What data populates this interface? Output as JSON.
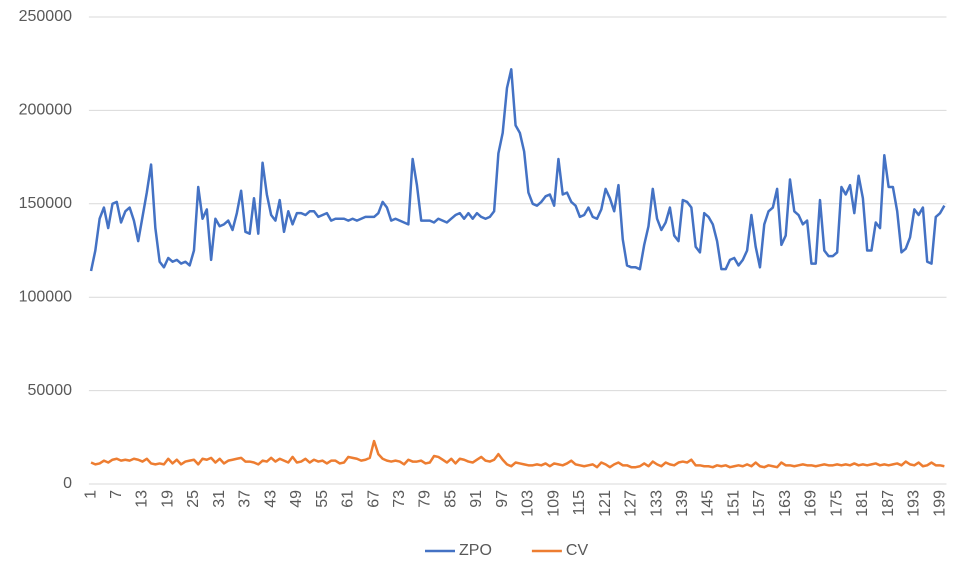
{
  "chart_data": {
    "type": "line",
    "categories": [
      1,
      null,
      null,
      null,
      null,
      null,
      7,
      null,
      null,
      null,
      null,
      null,
      13,
      null,
      null,
      null,
      null,
      null,
      19,
      null,
      null,
      null,
      null,
      null,
      25,
      null,
      null,
      null,
      null,
      null,
      31,
      null,
      null,
      null,
      null,
      null,
      37,
      null,
      null,
      null,
      null,
      null,
      43,
      null,
      null,
      null,
      null,
      null,
      49,
      null,
      null,
      null,
      null,
      null,
      55,
      null,
      null,
      null,
      null,
      null,
      61,
      null,
      null,
      null,
      null,
      null,
      67,
      null,
      null,
      null,
      null,
      null,
      73,
      null,
      null,
      null,
      null,
      null,
      79,
      null,
      null,
      null,
      null,
      null,
      85,
      null,
      null,
      null,
      null,
      null,
      91,
      null,
      null,
      null,
      null,
      null,
      97,
      null,
      null,
      null,
      null,
      null,
      103,
      null,
      null,
      null,
      null,
      null,
      109,
      null,
      null,
      null,
      null,
      null,
      115,
      null,
      null,
      null,
      null,
      null,
      121,
      null,
      null,
      null,
      null,
      null,
      127,
      null,
      null,
      null,
      null,
      null,
      133,
      null,
      null,
      null,
      null,
      null,
      139,
      null,
      null,
      null,
      null,
      null,
      145,
      null,
      null,
      null,
      null,
      null,
      151,
      null,
      null,
      null,
      null,
      null,
      157,
      null,
      null,
      null,
      null,
      null,
      163,
      null,
      null,
      null,
      null,
      null,
      169,
      null,
      null,
      null,
      null,
      null,
      175,
      null,
      null,
      null,
      null,
      null,
      181,
      null,
      null,
      null,
      null,
      null,
      187,
      null,
      null,
      null,
      null,
      null,
      193,
      null,
      null,
      null,
      null,
      null,
      199,
      null
    ],
    "series": [
      {
        "name": "ZPO",
        "color": "#4472c4",
        "values": [
          114000,
          125000,
          142000,
          148000,
          137000,
          150000,
          151000,
          140000,
          146000,
          148000,
          141000,
          130000,
          143000,
          156000,
          171000,
          137000,
          119000,
          116000,
          121000,
          119000,
          120000,
          118000,
          119000,
          117000,
          125000,
          159000,
          142000,
          147000,
          120000,
          142000,
          138000,
          139000,
          141000,
          136000,
          145000,
          157000,
          135000,
          134000,
          153000,
          134000,
          172000,
          155000,
          144000,
          141000,
          152000,
          135000,
          146000,
          139000,
          145000,
          145000,
          144000,
          146000,
          146000,
          143000,
          144000,
          145000,
          141000,
          142000,
          142000,
          142000,
          141000,
          142000,
          141000,
          142000,
          143000,
          143000,
          143000,
          145000,
          151000,
          148000,
          141000,
          142000,
          141000,
          140000,
          139000,
          174000,
          160000,
          141000,
          141000,
          141000,
          140000,
          142000,
          141000,
          140000,
          142000,
          144000,
          145000,
          142000,
          145000,
          142000,
          145000,
          143000,
          142000,
          143000,
          146000,
          177000,
          188000,
          212000,
          222000,
          192000,
          188000,
          178000,
          156000,
          150000,
          149000,
          151000,
          154000,
          155000,
          149000,
          174000,
          155000,
          156000,
          151000,
          149000,
          143000,
          144000,
          148000,
          143000,
          142000,
          147000,
          158000,
          153000,
          146000,
          160000,
          131000,
          117000,
          116000,
          116000,
          115000,
          128000,
          138000,
          158000,
          142000,
          136000,
          140000,
          148000,
          133000,
          130000,
          152000,
          151000,
          148000,
          127000,
          124000,
          145000,
          143000,
          139000,
          130000,
          115000,
          115000,
          120000,
          121000,
          117000,
          120000,
          125000,
          144000,
          127000,
          116000,
          139000,
          146000,
          148000,
          158000,
          128000,
          133000,
          163000,
          146000,
          144000,
          139000,
          141000,
          118000,
          118000,
          152000,
          125000,
          122000,
          122000,
          124000,
          159000,
          155000,
          160000,
          145000,
          165000,
          153000,
          125000,
          125000,
          140000,
          137000,
          176000,
          159000,
          159000,
          146000,
          124000,
          126000,
          132000,
          147000,
          144000,
          148000,
          119000,
          118000,
          143000,
          145000,
          149000
        ]
      },
      {
        "name": "CV",
        "color": "#ed7d31",
        "values": [
          11500,
          10500,
          11000,
          12500,
          11500,
          13000,
          13500,
          12500,
          13000,
          12500,
          13500,
          13000,
          12000,
          13500,
          11000,
          10500,
          11000,
          10500,
          13500,
          11000,
          13000,
          10500,
          12000,
          12500,
          13000,
          10500,
          13500,
          13000,
          14000,
          11500,
          13500,
          11000,
          12500,
          13000,
          13500,
          14000,
          12000,
          12000,
          11500,
          10500,
          12500,
          12000,
          14000,
          12000,
          13500,
          12500,
          11500,
          14500,
          11500,
          12000,
          13500,
          11500,
          13000,
          12000,
          12500,
          11000,
          12500,
          12500,
          11000,
          11500,
          14500,
          14000,
          13500,
          12500,
          13000,
          14000,
          23000,
          16000,
          13500,
          12500,
          12000,
          12500,
          12000,
          10500,
          13000,
          12000,
          12000,
          12500,
          11000,
          11500,
          15000,
          14500,
          13000,
          11500,
          13500,
          11000,
          13500,
          13000,
          12000,
          11500,
          13000,
          14500,
          12500,
          12000,
          13000,
          16000,
          13000,
          10500,
          9500,
          11500,
          11000,
          10500,
          10000,
          10000,
          10500,
          10000,
          11000,
          9500,
          11000,
          10500,
          10000,
          11000,
          12500,
          10500,
          10000,
          9500,
          10000,
          10500,
          9000,
          11500,
          10500,
          9000,
          10500,
          11500,
          10000,
          10000,
          9000,
          9000,
          9500,
          11000,
          9500,
          12000,
          10500,
          9500,
          11500,
          10500,
          10000,
          11500,
          12000,
          11500,
          13000,
          10000,
          10000,
          9500,
          9500,
          9000,
          10000,
          9500,
          10000,
          9000,
          9500,
          10000,
          9500,
          10500,
          9500,
          11500,
          9500,
          9000,
          10000,
          9500,
          9000,
          11500,
          10000,
          10000,
          9500,
          10000,
          10500,
          10000,
          10000,
          9500,
          10000,
          10500,
          10000,
          10000,
          10500,
          10000,
          10500,
          10000,
          11000,
          10000,
          10500,
          10000,
          10500,
          11000,
          10000,
          10500,
          10000,
          10500,
          11000,
          10000,
          12000,
          10500,
          10000,
          11500,
          9500,
          10000,
          11500,
          10000,
          10000,
          9500
        ]
      }
    ],
    "ylim": [
      0,
      250000
    ],
    "yticks": [
      0,
      50000,
      100000,
      150000,
      200000,
      250000
    ],
    "grid": true,
    "legend": "bottom"
  }
}
